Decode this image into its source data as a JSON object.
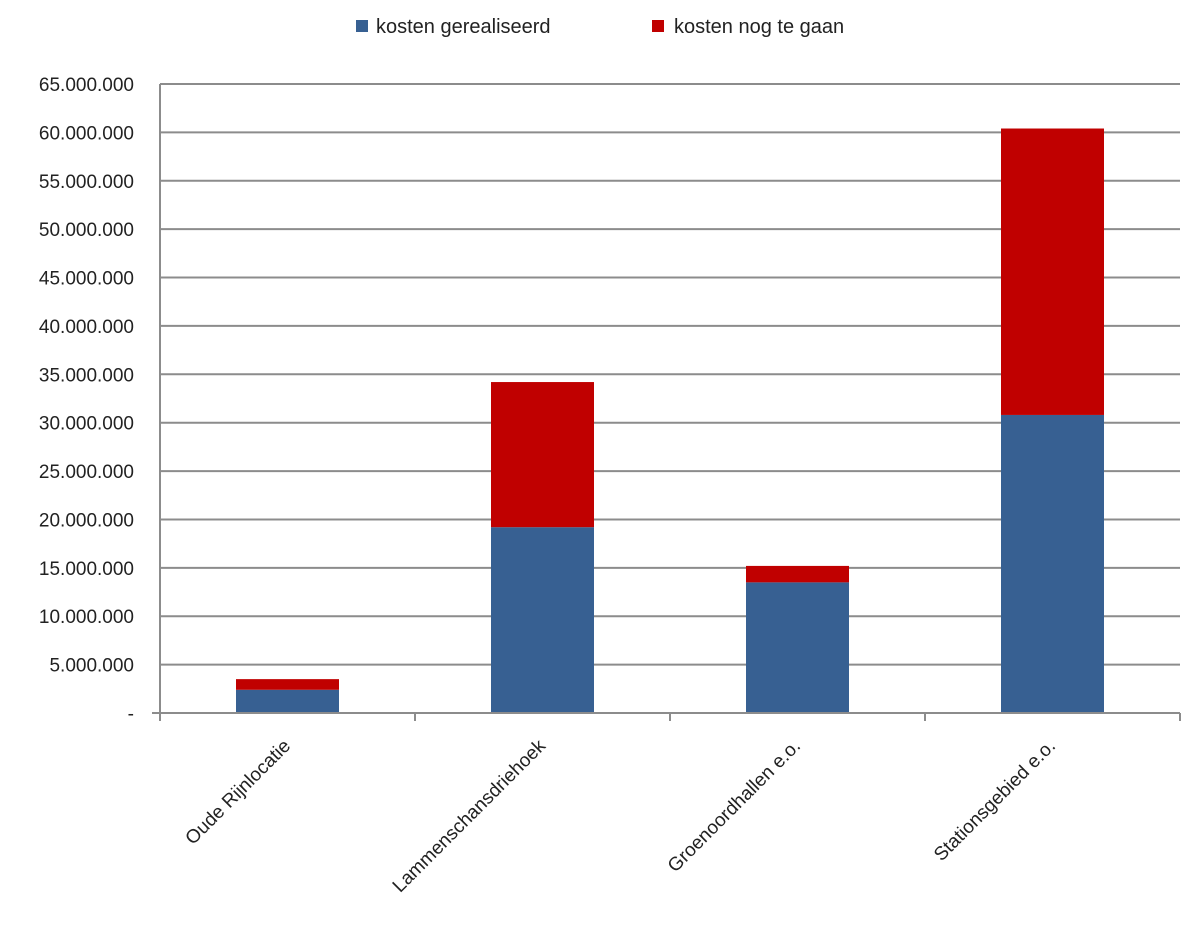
{
  "chart_data": {
    "type": "bar",
    "stacked": true,
    "categories": [
      "Oude Rijnlocatie",
      "Lammenschansdriehoek",
      "Groenoordhallen e.o.",
      "Stationsgebied e.o."
    ],
    "series": [
      {
        "name": "kosten gerealiseerd",
        "color": "#376092",
        "values": [
          2400000,
          19200000,
          13500000,
          30800000
        ]
      },
      {
        "name": "kosten nog te gaan",
        "color": "#C00000",
        "values": [
          1100000,
          15000000,
          1700000,
          29600000
        ]
      }
    ],
    "ylim": [
      0,
      65000000
    ],
    "y_ticks": [
      0,
      5000000,
      10000000,
      15000000,
      20000000,
      25000000,
      30000000,
      35000000,
      40000000,
      45000000,
      50000000,
      55000000,
      60000000,
      65000000
    ],
    "y_tick_labels": [
      "-",
      "5.000.000",
      "10.000.000",
      "15.000.000",
      "20.000.000",
      "25.000.000",
      "30.000.000",
      "35.000.000",
      "40.000.000",
      "45.000.000",
      "50.000.000",
      "55.000.000",
      "60.000.000",
      "65.000.000"
    ],
    "legend_position": "top",
    "grid": true,
    "gridline_color": "#8c8c8c",
    "title": "",
    "xlabel": "",
    "ylabel": ""
  }
}
